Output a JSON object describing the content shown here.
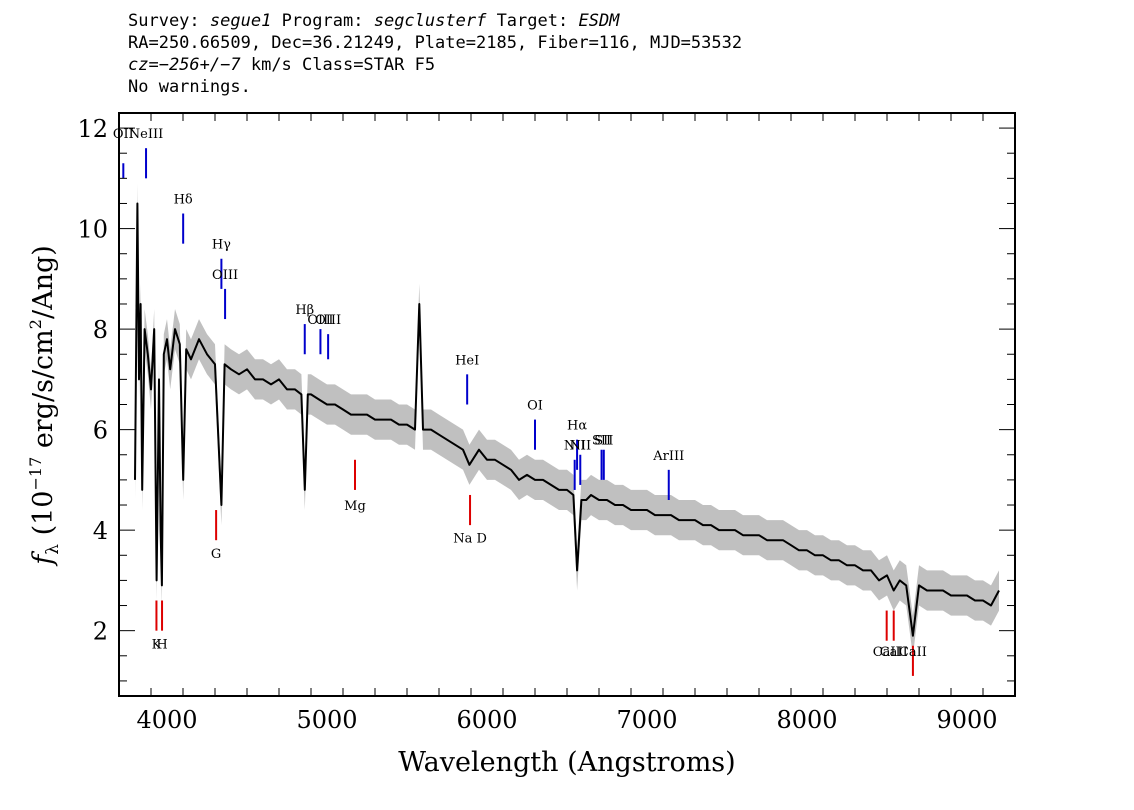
{
  "header": {
    "line1": {
      "survey_label": "Survey:",
      "survey": "segue1",
      "program_label": "Program:",
      "program": "segclusterf",
      "target_label": "Target:",
      "target": "ESDM"
    },
    "line2": "RA=250.66509, Dec=36.21249, Plate=2185, Fiber=116, MJD=53532",
    "line3": {
      "cz_label": "cz=",
      "cz": "−256+/−7",
      "rest": " km/s Class=STAR F5"
    },
    "line4": "No warnings."
  },
  "colors": {
    "error": "#c0c0c0",
    "flux": "#000000",
    "emission": "#0000cc",
    "absorption": "#dd0000"
  },
  "chart_data": {
    "type": "line",
    "xlabel": "Wavelength (Angstroms)",
    "ylabel_prefix": "f",
    "ylabel_sub": "λ",
    "ylabel_mid": " (10",
    "ylabel_exp": "−17",
    "ylabel_units": " erg/s/cm",
    "ylabel_exp2": "2",
    "ylabel_end": "/Ang)",
    "xlim": [
      3700,
      9300
    ],
    "ylim": [
      0.7,
      12.3
    ],
    "xticks": [
      4000,
      5000,
      6000,
      7000,
      8000,
      9000
    ],
    "yticks": [
      2,
      4,
      6,
      8,
      10,
      12
    ],
    "xtick_labels": [
      "4000",
      "5000",
      "6000",
      "7000",
      "8000",
      "9000"
    ],
    "ytick_labels": [
      "2",
      "4",
      "6",
      "8",
      "10",
      "12"
    ],
    "series": [
      {
        "x": [
          3800,
          3815,
          3825,
          3835,
          3845,
          3860,
          3880,
          3900,
          3920,
          3935,
          3950,
          3960,
          3968,
          3980,
          4000,
          4020,
          4050,
          4080,
          4101,
          4120,
          4150,
          4200,
          4250,
          4300,
          4340,
          4360,
          4400,
          4450,
          4500,
          4550,
          4600,
          4650,
          4700,
          4750,
          4800,
          4840,
          4861,
          4880,
          4900,
          4950,
          5000,
          5050,
          5100,
          5150,
          5200,
          5250,
          5300,
          5350,
          5400,
          5450,
          5500,
          5550,
          5577,
          5600,
          5650,
          5700,
          5750,
          5800,
          5850,
          5890,
          5950,
          6000,
          6050,
          6100,
          6150,
          6200,
          6250,
          6300,
          6350,
          6400,
          6450,
          6500,
          6540,
          6563,
          6590,
          6620,
          6650,
          6700,
          6750,
          6800,
          6850,
          6900,
          6950,
          7000,
          7050,
          7100,
          7150,
          7200,
          7250,
          7300,
          7350,
          7400,
          7450,
          7500,
          7550,
          7600,
          7650,
          7700,
          7750,
          7800,
          7850,
          7900,
          7950,
          8000,
          8050,
          8100,
          8150,
          8200,
          8250,
          8300,
          8350,
          8400,
          8450,
          8500,
          8542,
          8580,
          8620,
          8662,
          8700,
          8750,
          8800,
          8850,
          8900,
          8950,
          9000,
          9050,
          9100,
          9150,
          9200
        ],
        "y": [
          5.0,
          10.5,
          7.0,
          8.5,
          4.8,
          8.0,
          7.5,
          6.8,
          8.0,
          3.0,
          7.0,
          4.0,
          2.9,
          7.5,
          7.8,
          7.2,
          8.0,
          7.7,
          5.0,
          7.6,
          7.4,
          7.8,
          7.5,
          7.3,
          4.5,
          7.3,
          7.2,
          7.1,
          7.2,
          7.0,
          7.0,
          6.9,
          7.0,
          6.8,
          6.8,
          6.7,
          4.8,
          6.7,
          6.7,
          6.6,
          6.5,
          6.5,
          6.4,
          6.3,
          6.3,
          6.3,
          6.2,
          6.2,
          6.2,
          6.1,
          6.1,
          6.0,
          8.5,
          6.0,
          6.0,
          5.9,
          5.8,
          5.7,
          5.6,
          5.3,
          5.6,
          5.4,
          5.4,
          5.3,
          5.2,
          5.0,
          5.1,
          5.0,
          5.0,
          4.9,
          4.8,
          4.8,
          4.7,
          3.2,
          4.6,
          4.6,
          4.7,
          4.6,
          4.6,
          4.5,
          4.5,
          4.4,
          4.4,
          4.4,
          4.3,
          4.3,
          4.3,
          4.2,
          4.2,
          4.2,
          4.1,
          4.1,
          4.0,
          4.0,
          4.0,
          3.9,
          3.9,
          3.9,
          3.8,
          3.8,
          3.8,
          3.7,
          3.6,
          3.6,
          3.5,
          3.5,
          3.4,
          3.4,
          3.3,
          3.3,
          3.2,
          3.2,
          3.0,
          3.1,
          2.8,
          3.0,
          2.9,
          1.9,
          2.9,
          2.8,
          2.8,
          2.8,
          2.7,
          2.7,
          2.7,
          2.6,
          2.6,
          2.5,
          2.8
        ]
      }
    ],
    "error_halfwidth": 0.4,
    "emission_lines": [
      {
        "label": "OII",
        "wavelength": 3727,
        "y_top": 11.3,
        "y_bot": 11.0,
        "label_y": 11.8
      },
      {
        "label": "NeIII",
        "wavelength": 3869,
        "y_top": 11.6,
        "y_bot": 11.0,
        "label_y": 11.8
      },
      {
        "label": "Hδ",
        "wavelength": 4101,
        "y_top": 10.3,
        "y_bot": 9.7,
        "label_y": 10.5
      },
      {
        "label": "Hγ",
        "wavelength": 4340,
        "y_top": 9.4,
        "y_bot": 8.8,
        "label_y": 9.6
      },
      {
        "label": "OIII",
        "wavelength": 4363,
        "y_top": 8.8,
        "y_bot": 8.2,
        "label_y": 9.0
      },
      {
        "label": "Hβ",
        "wavelength": 4861,
        "y_top": 8.1,
        "y_bot": 7.5,
        "label_y": 8.3
      },
      {
        "label": "OIII",
        "wavelength": 4959,
        "y_top": 8.0,
        "y_bot": 7.5,
        "label_y": 8.1
      },
      {
        "label": "OIII",
        "wavelength": 5007,
        "y_top": 7.9,
        "y_bot": 7.4,
        "label_y": 8.1
      },
      {
        "label": "HeI",
        "wavelength": 5876,
        "y_top": 7.1,
        "y_bot": 6.5,
        "label_y": 7.3
      },
      {
        "label": "OI",
        "wavelength": 6300,
        "y_top": 6.2,
        "y_bot": 5.6,
        "label_y": 6.4
      },
      {
        "label": "NII",
        "wavelength": 6548,
        "y_top": 5.4,
        "y_bot": 4.8,
        "label_y": 5.6
      },
      {
        "label": "Hα",
        "wavelength": 6563,
        "y_top": 5.8,
        "y_bot": 5.2,
        "label_y": 6.0
      },
      {
        "label": "NII",
        "wavelength": 6583,
        "y_top": 5.5,
        "y_bot": 4.9,
        "label_y": 5.6
      },
      {
        "label": "SII",
        "wavelength": 6716,
        "y_top": 5.6,
        "y_bot": 5.0,
        "label_y": 5.7
      },
      {
        "label": "SII",
        "wavelength": 6730,
        "y_top": 5.6,
        "y_bot": 5.0,
        "label_y": 5.7
      },
      {
        "label": "ArIII",
        "wavelength": 7136,
        "y_top": 5.2,
        "y_bot": 4.6,
        "label_y": 5.4
      }
    ],
    "absorption_lines": [
      {
        "label": "K",
        "wavelength": 3934,
        "y_top": 2.6,
        "y_bot": 2.0,
        "label_y": 1.65
      },
      {
        "label": "H",
        "wavelength": 3969,
        "y_top": 2.6,
        "y_bot": 2.0,
        "label_y": 1.65
      },
      {
        "label": "G",
        "wavelength": 4307,
        "y_top": 4.4,
        "y_bot": 3.8,
        "label_y": 3.45
      },
      {
        "label": "Mg",
        "wavelength": 5175,
        "y_top": 5.4,
        "y_bot": 4.8,
        "label_y": 4.4
      },
      {
        "label": "Na D",
        "wavelength": 5894,
        "y_top": 4.7,
        "y_bot": 4.1,
        "label_y": 3.75
      },
      {
        "label": "CaII",
        "wavelength": 8498,
        "y_top": 2.4,
        "y_bot": 1.8,
        "label_y": 1.5
      },
      {
        "label": "CaII",
        "wavelength": 8542,
        "y_top": 2.4,
        "y_bot": 1.8,
        "label_y": 1.5
      },
      {
        "label": "CaII",
        "wavelength": 8662,
        "y_top": 1.7,
        "y_bot": 1.1,
        "label_y": 1.5
      }
    ]
  }
}
